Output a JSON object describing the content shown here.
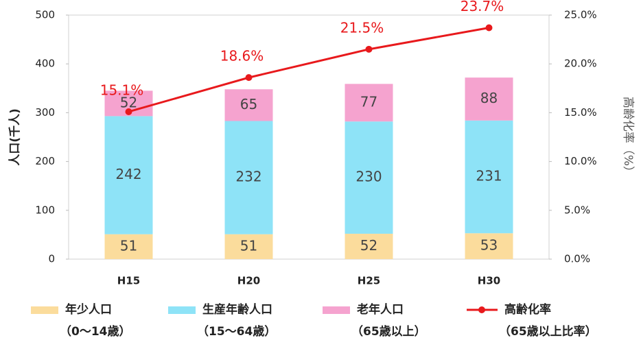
{
  "chart_data": {
    "type": "bar",
    "categories": [
      "H15",
      "H20",
      "H25",
      "H30"
    ],
    "series": [
      {
        "name": "年少人口",
        "note": "（0〜14歳）",
        "color": "#fbdc9c",
        "values": [
          51,
          51,
          52,
          53
        ]
      },
      {
        "name": "生産年齢人口",
        "note": "（15〜64歳）",
        "color": "#8ee3f7",
        "values": [
          242,
          232,
          230,
          231
        ]
      },
      {
        "name": "老年人口",
        "note": "（65歳以上）",
        "color": "#f5a3cf",
        "values": [
          52,
          65,
          77,
          88
        ]
      },
      {
        "name": "高齢化率",
        "note": "（65歳以上比率）",
        "type": "line",
        "axis": "y2",
        "color": "#e8191c",
        "values": [
          15.1,
          18.6,
          21.5,
          23.7
        ],
        "value_labels": [
          "15.1%",
          "18.6%",
          "21.5%",
          "23.7%"
        ]
      }
    ],
    "ylabel": "人口(千人)",
    "y2label": "高齢化率（%）",
    "ylim": [
      0,
      500
    ],
    "yticks": [
      0,
      100,
      200,
      300,
      400,
      500
    ],
    "y2lim": [
      0,
      25
    ],
    "y2ticks": [
      {
        "value": 0,
        "label": "0.0%"
      },
      {
        "value": 5,
        "label": "5.0%"
      },
      {
        "value": 10,
        "label": "10.0%"
      },
      {
        "value": 15,
        "label": "15.0%"
      },
      {
        "value": 20,
        "label": "20.0%"
      },
      {
        "value": 25,
        "label": "25.0%"
      }
    ]
  }
}
